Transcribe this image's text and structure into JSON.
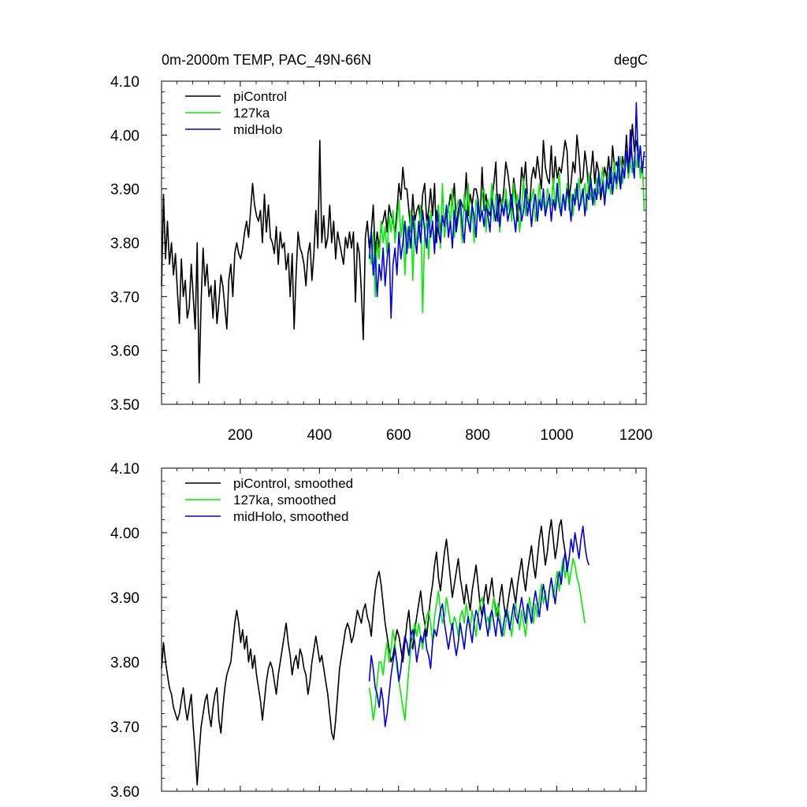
{
  "chart_data": [
    {
      "type": "line",
      "title_left": "0m-2000m TEMP, PAC_49N-66N",
      "title_right": "degC",
      "xlabel": "",
      "ylabel": "",
      "xlim": [
        1,
        1226
      ],
      "ylim": [
        3.5,
        4.1
      ],
      "x_ticks": [
        200,
        400,
        600,
        800,
        1000,
        1200
      ],
      "x_tick_labels": [
        "200",
        "400",
        "600",
        "800",
        "1000",
        "1200"
      ],
      "y_ticks": [
        3.5,
        3.6,
        3.7,
        3.8,
        3.9,
        4.0,
        4.1
      ],
      "y_tick_labels": [
        "3.50",
        "3.60",
        "3.70",
        "3.80",
        "3.90",
        "4.00",
        "4.10"
      ],
      "legend_position": "top-left",
      "series": [
        {
          "name": "piControl",
          "color": "#000000",
          "x_start": 1,
          "x_step": 5,
          "values": [
            3.72,
            3.89,
            3.77,
            3.84,
            3.76,
            3.8,
            3.74,
            3.78,
            3.71,
            3.65,
            3.77,
            3.7,
            3.73,
            3.66,
            3.68,
            3.76,
            3.7,
            3.64,
            3.8,
            3.54,
            3.69,
            3.79,
            3.72,
            3.76,
            3.7,
            3.72,
            3.66,
            3.73,
            3.65,
            3.69,
            3.74,
            3.72,
            3.68,
            3.64,
            3.73,
            3.76,
            3.7,
            3.78,
            3.8,
            3.78,
            3.77,
            3.79,
            3.82,
            3.84,
            3.81,
            3.86,
            3.91,
            3.87,
            3.85,
            3.84,
            3.86,
            3.8,
            3.89,
            3.82,
            3.87,
            3.81,
            3.8,
            3.78,
            3.83,
            3.76,
            3.82,
            3.79,
            3.8,
            3.75,
            3.78,
            3.7,
            3.78,
            3.64,
            3.74,
            3.82,
            3.79,
            3.78,
            3.76,
            3.72,
            3.78,
            3.8,
            3.73,
            3.78,
            3.86,
            3.79,
            3.99,
            3.8,
            3.85,
            3.79,
            3.81,
            3.87,
            3.8,
            3.84,
            3.77,
            3.82,
            3.8,
            3.78,
            3.76,
            3.81,
            3.79,
            3.82,
            3.79,
            3.82,
            3.69,
            3.8,
            3.78,
            3.71,
            3.62,
            3.81,
            3.84,
            3.79,
            3.82,
            3.87,
            3.78,
            3.82,
            3.79,
            3.83,
            3.84,
            3.86,
            3.82,
            3.87,
            3.85,
            3.84,
            3.82,
            3.86,
            3.91,
            3.88,
            3.94,
            3.9,
            3.9,
            3.86,
            3.82,
            3.89,
            3.84,
            3.86,
            3.87,
            3.83,
            3.89,
            3.91,
            3.84,
            3.86,
            3.9,
            3.85,
            3.91,
            3.8,
            3.86,
            3.82,
            3.85,
            3.84,
            3.85,
            3.86,
            3.89,
            3.87,
            3.91,
            3.83,
            3.86,
            3.88,
            3.87,
            3.86,
            3.93,
            3.85,
            3.89,
            3.87,
            3.9,
            3.9,
            3.88,
            3.84,
            3.94,
            3.86,
            3.89,
            3.86,
            3.85,
            3.88,
            3.91,
            3.95,
            3.84,
            3.89,
            3.86,
            3.9,
            3.95,
            3.93,
            3.9,
            3.86,
            3.92,
            3.89,
            3.84,
            3.87,
            3.94,
            3.91,
            3.95,
            3.88,
            3.86,
            3.92,
            3.94,
            3.92,
            3.96,
            3.93,
            3.9,
            3.99,
            3.94,
            3.92,
            3.91,
            3.98,
            3.9,
            3.96,
            3.92,
            3.94,
            3.93,
            3.96,
            3.99,
            3.97,
            3.88,
            3.91,
            3.95,
            3.93,
            4.0,
            3.96,
            3.91,
            3.92,
            3.97,
            3.94,
            3.89,
            3.93,
            3.97,
            3.91,
            3.95,
            3.93,
            3.88,
            3.91,
            3.94,
            3.92,
            3.96,
            3.91,
            3.98,
            3.94,
            3.95,
            3.93,
            3.9,
            3.96,
            3.94,
            4.0,
            3.93,
            3.96,
            4.02,
            3.97,
            3.99,
            3.96,
            3.93,
            3.95
          ]
        },
        {
          "name": "127ka",
          "color": "#00ee00",
          "x_start": 526,
          "x_step": 5,
          "values": [
            3.79,
            3.76,
            3.82,
            3.7,
            3.8,
            3.77,
            3.84,
            3.8,
            3.83,
            3.78,
            3.85,
            3.82,
            3.86,
            3.8,
            3.84,
            3.88,
            3.81,
            3.85,
            3.74,
            3.83,
            3.79,
            3.86,
            3.73,
            3.84,
            3.8,
            3.81,
            3.87,
            3.67,
            3.82,
            3.84,
            3.77,
            3.86,
            3.83,
            3.8,
            3.85,
            3.87,
            3.79,
            3.91,
            3.81,
            3.84,
            3.87,
            3.83,
            3.9,
            3.81,
            3.86,
            3.88,
            3.85,
            3.8,
            3.89,
            3.84,
            3.91,
            3.83,
            3.87,
            3.8,
            3.88,
            3.86,
            3.84,
            3.89,
            3.9,
            3.82,
            3.88,
            3.86,
            3.91,
            3.84,
            3.89,
            3.87,
            3.82,
            3.88,
            3.85,
            3.9,
            3.86,
            3.88,
            3.84,
            3.91,
            3.87,
            3.89,
            3.82,
            3.86,
            3.92,
            3.85,
            3.89,
            3.86,
            3.88,
            3.9,
            3.84,
            3.87,
            3.91,
            3.86,
            3.88,
            3.85,
            3.9,
            3.89,
            3.87,
            3.92,
            3.86,
            3.88,
            3.93,
            3.85,
            3.89,
            3.87,
            3.91,
            3.86,
            3.89,
            3.85,
            3.9,
            3.88,
            3.92,
            3.87,
            3.89,
            3.91,
            3.86,
            3.93,
            3.88,
            3.9,
            3.87,
            3.92,
            3.89,
            3.91,
            3.94,
            3.88,
            3.9,
            3.93,
            3.89,
            3.92,
            3.95,
            3.9,
            3.93,
            3.96,
            3.91,
            3.94,
            3.97,
            3.92,
            3.95,
            3.93,
            3.96,
            3.94,
            3.98,
            3.92,
            3.95,
            3.86
          ]
        },
        {
          "name": "midHolo",
          "color": "#0000ee",
          "x_start": 526,
          "x_step": 5,
          "values": [
            3.77,
            3.82,
            3.74,
            3.78,
            3.7,
            3.76,
            3.73,
            3.79,
            3.72,
            3.77,
            3.8,
            3.66,
            3.76,
            3.79,
            3.74,
            3.82,
            3.77,
            3.8,
            3.84,
            3.78,
            3.83,
            3.79,
            3.85,
            3.81,
            3.78,
            3.84,
            3.8,
            3.86,
            3.82,
            3.79,
            3.85,
            3.81,
            3.84,
            3.78,
            3.86,
            3.82,
            3.8,
            3.85,
            3.83,
            3.87,
            3.81,
            3.84,
            3.79,
            3.86,
            3.82,
            3.85,
            3.88,
            3.83,
            3.8,
            3.86,
            3.84,
            3.82,
            3.87,
            3.85,
            3.81,
            3.88,
            3.84,
            3.86,
            3.83,
            3.87,
            3.85,
            3.82,
            3.88,
            3.86,
            3.84,
            3.89,
            3.83,
            3.87,
            3.85,
            3.88,
            3.84,
            3.86,
            3.89,
            3.85,
            3.82,
            3.87,
            3.88,
            3.84,
            3.86,
            3.9,
            3.85,
            3.88,
            3.83,
            3.87,
            3.89,
            3.84,
            3.88,
            3.86,
            3.9,
            3.85,
            3.87,
            3.89,
            3.84,
            3.88,
            3.86,
            3.91,
            3.87,
            3.85,
            3.89,
            3.86,
            3.9,
            3.88,
            3.84,
            3.89,
            3.87,
            3.91,
            3.86,
            3.88,
            3.9,
            3.85,
            3.89,
            3.88,
            3.92,
            3.87,
            3.9,
            3.88,
            3.93,
            3.89,
            3.91,
            3.87,
            3.92,
            3.9,
            3.94,
            3.89,
            3.93,
            3.91,
            3.96,
            3.9,
            3.94,
            3.92,
            3.97,
            3.93,
            4.01,
            3.95,
            3.92,
            4.06,
            3.94,
            3.98,
            3.93,
            3.97
          ]
        }
      ]
    },
    {
      "type": "line",
      "title_left": "",
      "title_right": "",
      "xlabel": "",
      "ylabel": "",
      "xlim": [
        1,
        1226
      ],
      "ylim": [
        3.6,
        4.1
      ],
      "x_ticks": [
        200,
        400,
        600,
        800,
        1000,
        1200
      ],
      "x_tick_labels": [],
      "y_ticks": [
        3.6,
        3.7,
        3.8,
        3.9,
        4.0,
        4.1
      ],
      "y_tick_labels": [
        "3.60",
        "3.70",
        "3.80",
        "3.90",
        "4.00",
        "4.10"
      ],
      "legend_position": "top-left",
      "series": [
        {
          "name": "piControl, smoothed",
          "color": "#000000",
          "x_start": 1,
          "x_step": 5,
          "values": [
            3.79,
            3.83,
            3.8,
            3.78,
            3.76,
            3.75,
            3.73,
            3.72,
            3.71,
            3.72,
            3.74,
            3.76,
            3.73,
            3.71,
            3.73,
            3.75,
            3.7,
            3.66,
            3.61,
            3.66,
            3.7,
            3.72,
            3.74,
            3.75,
            3.72,
            3.7,
            3.73,
            3.75,
            3.76,
            3.71,
            3.69,
            3.73,
            3.76,
            3.78,
            3.79,
            3.8,
            3.83,
            3.86,
            3.88,
            3.86,
            3.83,
            3.85,
            3.82,
            3.84,
            3.8,
            3.82,
            3.79,
            3.81,
            3.78,
            3.76,
            3.74,
            3.71,
            3.74,
            3.77,
            3.79,
            3.8,
            3.79,
            3.77,
            3.75,
            3.78,
            3.8,
            3.82,
            3.84,
            3.86,
            3.83,
            3.81,
            3.78,
            3.8,
            3.81,
            3.79,
            3.82,
            3.81,
            3.79,
            3.78,
            3.75,
            3.77,
            3.8,
            3.82,
            3.84,
            3.82,
            3.8,
            3.81,
            3.79,
            3.77,
            3.75,
            3.72,
            3.69,
            3.68,
            3.71,
            3.75,
            3.79,
            3.81,
            3.83,
            3.85,
            3.86,
            3.85,
            3.83,
            3.84,
            3.86,
            3.88,
            3.87,
            3.86,
            3.88,
            3.89,
            3.87,
            3.86,
            3.84,
            3.88,
            3.91,
            3.93,
            3.94,
            3.92,
            3.89,
            3.86,
            3.84,
            3.82,
            3.8,
            3.81,
            3.83,
            3.85,
            3.84,
            3.82,
            3.8,
            3.83,
            3.86,
            3.88,
            3.84,
            3.82,
            3.85,
            3.87,
            3.89,
            3.91,
            3.88,
            3.86,
            3.84,
            3.87,
            3.9,
            3.92,
            3.95,
            3.97,
            3.93,
            3.91,
            3.94,
            3.97,
            3.99,
            3.96,
            3.93,
            3.9,
            3.92,
            3.94,
            3.96,
            3.93,
            3.91,
            3.89,
            3.92,
            3.9,
            3.88,
            3.91,
            3.93,
            3.95,
            3.92,
            3.89,
            3.87,
            3.9,
            3.92,
            3.89,
            3.91,
            3.93,
            3.9,
            3.88,
            3.87,
            3.9,
            3.92,
            3.89,
            3.87,
            3.89,
            3.91,
            3.93,
            3.91,
            3.89,
            3.92,
            3.94,
            3.96,
            3.93,
            3.91,
            3.94,
            3.96,
            3.98,
            3.95,
            3.93,
            3.96,
            3.99,
            4.01,
            3.98,
            3.95,
            3.97,
            4.0,
            4.02,
            3.99,
            3.96,
            3.98,
            4.01,
            4.02,
            3.99,
            3.97,
            3.95
          ]
        },
        {
          "name": "127ka, smoothed",
          "color": "#00ee00",
          "x_start": 526,
          "x_step": 5,
          "values": [
            3.76,
            3.74,
            3.71,
            3.73,
            3.77,
            3.8,
            3.8,
            3.78,
            3.81,
            3.83,
            3.8,
            3.82,
            3.85,
            3.83,
            3.79,
            3.77,
            3.75,
            3.73,
            3.71,
            3.75,
            3.79,
            3.82,
            3.84,
            3.86,
            3.84,
            3.86,
            3.84,
            3.82,
            3.85,
            3.87,
            3.88,
            3.86,
            3.83,
            3.87,
            3.89,
            3.91,
            3.88,
            3.86,
            3.87,
            3.9,
            3.88,
            3.86,
            3.85,
            3.87,
            3.86,
            3.84,
            3.87,
            3.88,
            3.86,
            3.89,
            3.87,
            3.85,
            3.88,
            3.86,
            3.84,
            3.87,
            3.89,
            3.9,
            3.88,
            3.86,
            3.87,
            3.85,
            3.88,
            3.9,
            3.87,
            3.89,
            3.87,
            3.85,
            3.84,
            3.86,
            3.88,
            3.86,
            3.84,
            3.87,
            3.89,
            3.87,
            3.85,
            3.88,
            3.86,
            3.84,
            3.87,
            3.9,
            3.88,
            3.86,
            3.89,
            3.87,
            3.9,
            3.92,
            3.89,
            3.91,
            3.88,
            3.91,
            3.93,
            3.9,
            3.92,
            3.94,
            3.91,
            3.94,
            3.96,
            3.93,
            3.95,
            3.92,
            3.94,
            3.96,
            3.95,
            3.93,
            3.92,
            3.9,
            3.88,
            3.86
          ]
        },
        {
          "name": "midHolo, smoothed",
          "color": "#0000ee",
          "x_start": 526,
          "x_step": 5,
          "values": [
            3.77,
            3.81,
            3.79,
            3.76,
            3.75,
            3.73,
            3.76,
            3.74,
            3.7,
            3.72,
            3.75,
            3.78,
            3.8,
            3.82,
            3.8,
            3.77,
            3.79,
            3.82,
            3.84,
            3.83,
            3.81,
            3.84,
            3.85,
            3.83,
            3.8,
            3.82,
            3.84,
            3.83,
            3.85,
            3.82,
            3.81,
            3.79,
            3.83,
            3.85,
            3.84,
            3.86,
            3.88,
            3.89,
            3.86,
            3.84,
            3.82,
            3.84,
            3.86,
            3.83,
            3.81,
            3.83,
            3.86,
            3.84,
            3.82,
            3.85,
            3.87,
            3.85,
            3.83,
            3.86,
            3.88,
            3.87,
            3.85,
            3.87,
            3.89,
            3.86,
            3.84,
            3.87,
            3.88,
            3.86,
            3.84,
            3.87,
            3.86,
            3.84,
            3.86,
            3.88,
            3.87,
            3.85,
            3.87,
            3.89,
            3.87,
            3.86,
            3.88,
            3.9,
            3.88,
            3.86,
            3.89,
            3.88,
            3.86,
            3.89,
            3.91,
            3.89,
            3.87,
            3.9,
            3.92,
            3.9,
            3.88,
            3.91,
            3.93,
            3.91,
            3.89,
            3.92,
            3.94,
            3.92,
            3.95,
            3.97,
            3.94,
            3.96,
            3.99,
            3.97,
            4.0,
            3.98,
            3.96,
            3.99,
            4.01,
            3.98,
            3.96,
            3.95
          ]
        }
      ]
    }
  ]
}
